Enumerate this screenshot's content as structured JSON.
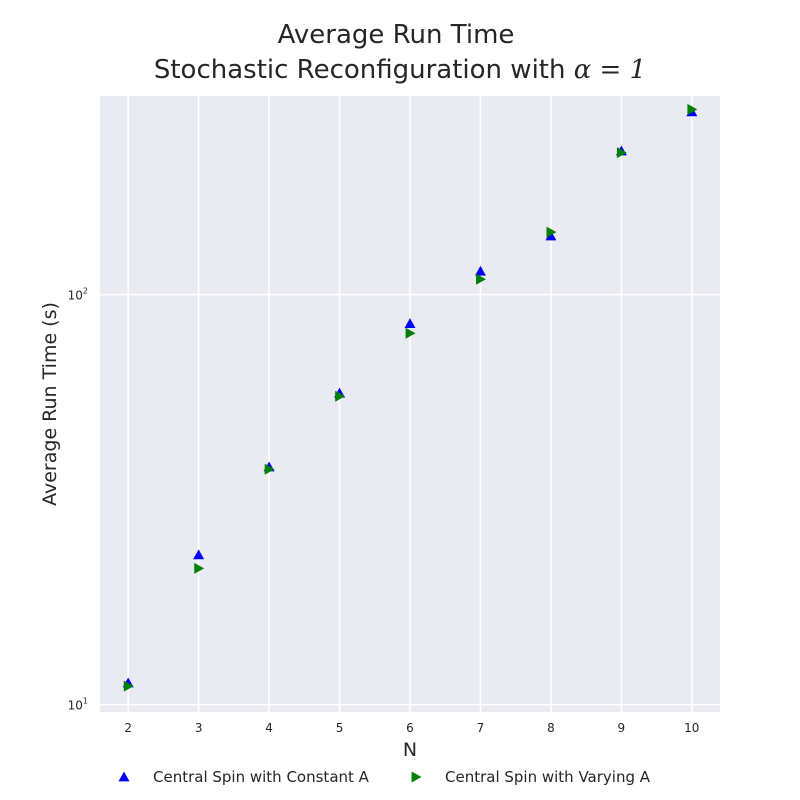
{
  "chart_data": {
    "type": "scatter",
    "title_line1": "Average Run Time",
    "title_line2_prefix": "Stochastic Reconfiguration with ",
    "title_line2_math": "α = 1",
    "xlabel": "N",
    "ylabel": "Average Run Time (s)",
    "xlim": [
      1.6,
      10.4
    ],
    "ylim": [
      9.6,
      305
    ],
    "yscale": "log",
    "x_ticks": [
      2,
      3,
      4,
      5,
      6,
      7,
      8,
      9,
      10
    ],
    "x_tick_labels": [
      "2",
      "3",
      "4",
      "5",
      "6",
      "7",
      "8",
      "9",
      "10"
    ],
    "y_major_ticks": [
      10,
      100
    ],
    "y_tick_labels": [
      {
        "base": "10",
        "exp": "1"
      },
      {
        "base": "10",
        "exp": "2"
      }
    ],
    "grid": true,
    "legend_position": "bottom",
    "series": [
      {
        "name": "Central Spin with Constant A",
        "marker": "triangle-up",
        "color": "#0000ff",
        "x": [
          2,
          3,
          4,
          5,
          6,
          7,
          8,
          9,
          10
        ],
        "y": [
          11.3,
          23.2,
          38.0,
          57.5,
          85.0,
          114.0,
          139.0,
          224.0,
          279.0
        ]
      },
      {
        "name": "Central Spin with Varying A",
        "marker": "triangle-right",
        "color": "#008000",
        "x": [
          2,
          3,
          4,
          5,
          6,
          7,
          8,
          9,
          10
        ],
        "y": [
          11.1,
          21.5,
          37.5,
          56.5,
          80.5,
          109.0,
          142.0,
          222.0,
          283.0
        ]
      }
    ]
  }
}
